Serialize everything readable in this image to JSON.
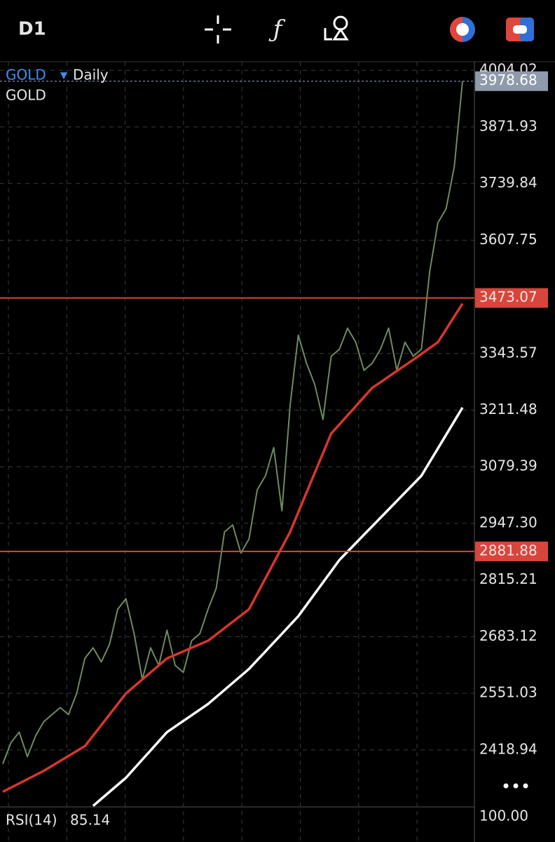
{
  "toolbar": {
    "timeframe": "D1"
  },
  "chart_data": {
    "type": "line",
    "symbol": "GOLD",
    "period": "Daily",
    "ylim": [
      2286,
      4024
    ],
    "yticks": [
      4004.02,
      3871.93,
      3739.84,
      3607.75,
      3343.57,
      3211.48,
      3079.39,
      {
        "value": 2947.3,
        "label": "2947.30"
      },
      2815.21,
      2683.12,
      2551.03,
      2418.94
    ],
    "grid": true,
    "series": [
      {
        "name": "GOLD",
        "color": "#6f8a60",
        "values": [
          2386.7,
          2435.9,
          2460.4,
          2403.1,
          2452.3,
          2485.0,
          2501.4,
          2517.8,
          2501.4,
          2550.6,
          2632.5,
          2657.1,
          2624.3,
          2665.3,
          2747.2,
          2771.8,
          2689.8,
          2583.3,
          2657.1,
          2616.1,
          2698.0,
          2616.1,
          2599.7,
          2673.5,
          2689.8,
          2747.2,
          2796.3,
          2927.4,
          2943.8,
          2878.3,
          2911.0,
          3025.7,
          3058.5,
          3124.0,
          2976.6,
          3222.4,
          3386.2,
          3320.7,
          3271.5,
          3189.6,
          3337.0,
          3353.4,
          3402.6,
          3369.8,
          3304.3,
          3320.7,
          3353.4,
          3402.6,
          3304.3,
          3369.8,
          3337.0,
          3353.4,
          3533.7,
          3648.4,
          3681.1,
          3779.4,
          3978.7
        ]
      },
      {
        "color": "#d9362c",
        "values": [
          2321.2,
          2331.0,
          2340.8,
          2350.7,
          2360.5,
          2370.3,
          2381.8,
          2393.3,
          2404.7,
          2416.2,
          2427.7,
          2452.3,
          2476.8,
          2501.4,
          2526.0,
          2550.6,
          2567.0,
          2583.4,
          2599.7,
          2616.1,
          2632.5,
          2640.7,
          2648.9,
          2657.1,
          2665.3,
          2673.5,
          2688.2,
          2703.0,
          2717.7,
          2732.5,
          2747.2,
          2783.2,
          2819.3,
          2855.3,
          2891.4,
          2927.4,
          2973.3,
          3019.2,
          3065.0,
          3110.9,
          3156.8,
          3178.1,
          3199.4,
          3220.7,
          3242.0,
          3263.3,
          3276.4,
          3289.5,
          3302.7,
          3315.8,
          3328.9,
          3342.5,
          3356.2,
          3369.8,
          3399.8,
          3429.9,
          3459.9
        ]
      },
      {
        "color": "#ffffff",
        "values": [
          null,
          null,
          null,
          null,
          null,
          null,
          null,
          null,
          null,
          null,
          null,
          2288.4,
          2304.8,
          2321.2,
          2337.5,
          2353.9,
          2375.2,
          2396.5,
          2417.8,
          2439.1,
          2460.4,
          2473.5,
          2486.6,
          2499.8,
          2512.9,
          2526.0,
          2542.4,
          2558.8,
          2575.2,
          2591.5,
          2607.9,
          2628.4,
          2648.9,
          2669.4,
          2689.8,
          2710.3,
          2730.8,
          2757.0,
          2783.2,
          2809.5,
          2835.7,
          2861.9,
          2881.6,
          2901.2,
          2920.9,
          2940.5,
          2960.2,
          2979.9,
          2999.5,
          3019.2,
          3038.8,
          3058.5,
          3090.3,
          3122.1,
          3153.9,
          3185.6,
          3217.4
        ]
      }
    ],
    "hlines": [
      {
        "value": 3473.07,
        "color": "#d9453b"
      },
      {
        "value": 2881.88,
        "color": "#d9453b"
      }
    ],
    "last_price": {
      "value": 3978.68,
      "color": "#8f9aab"
    },
    "indicator": {
      "name": "RSI(14)",
      "value": 85.14,
      "yticks": [
        {
          "value": 100,
          "label": "100.00"
        }
      ]
    }
  }
}
